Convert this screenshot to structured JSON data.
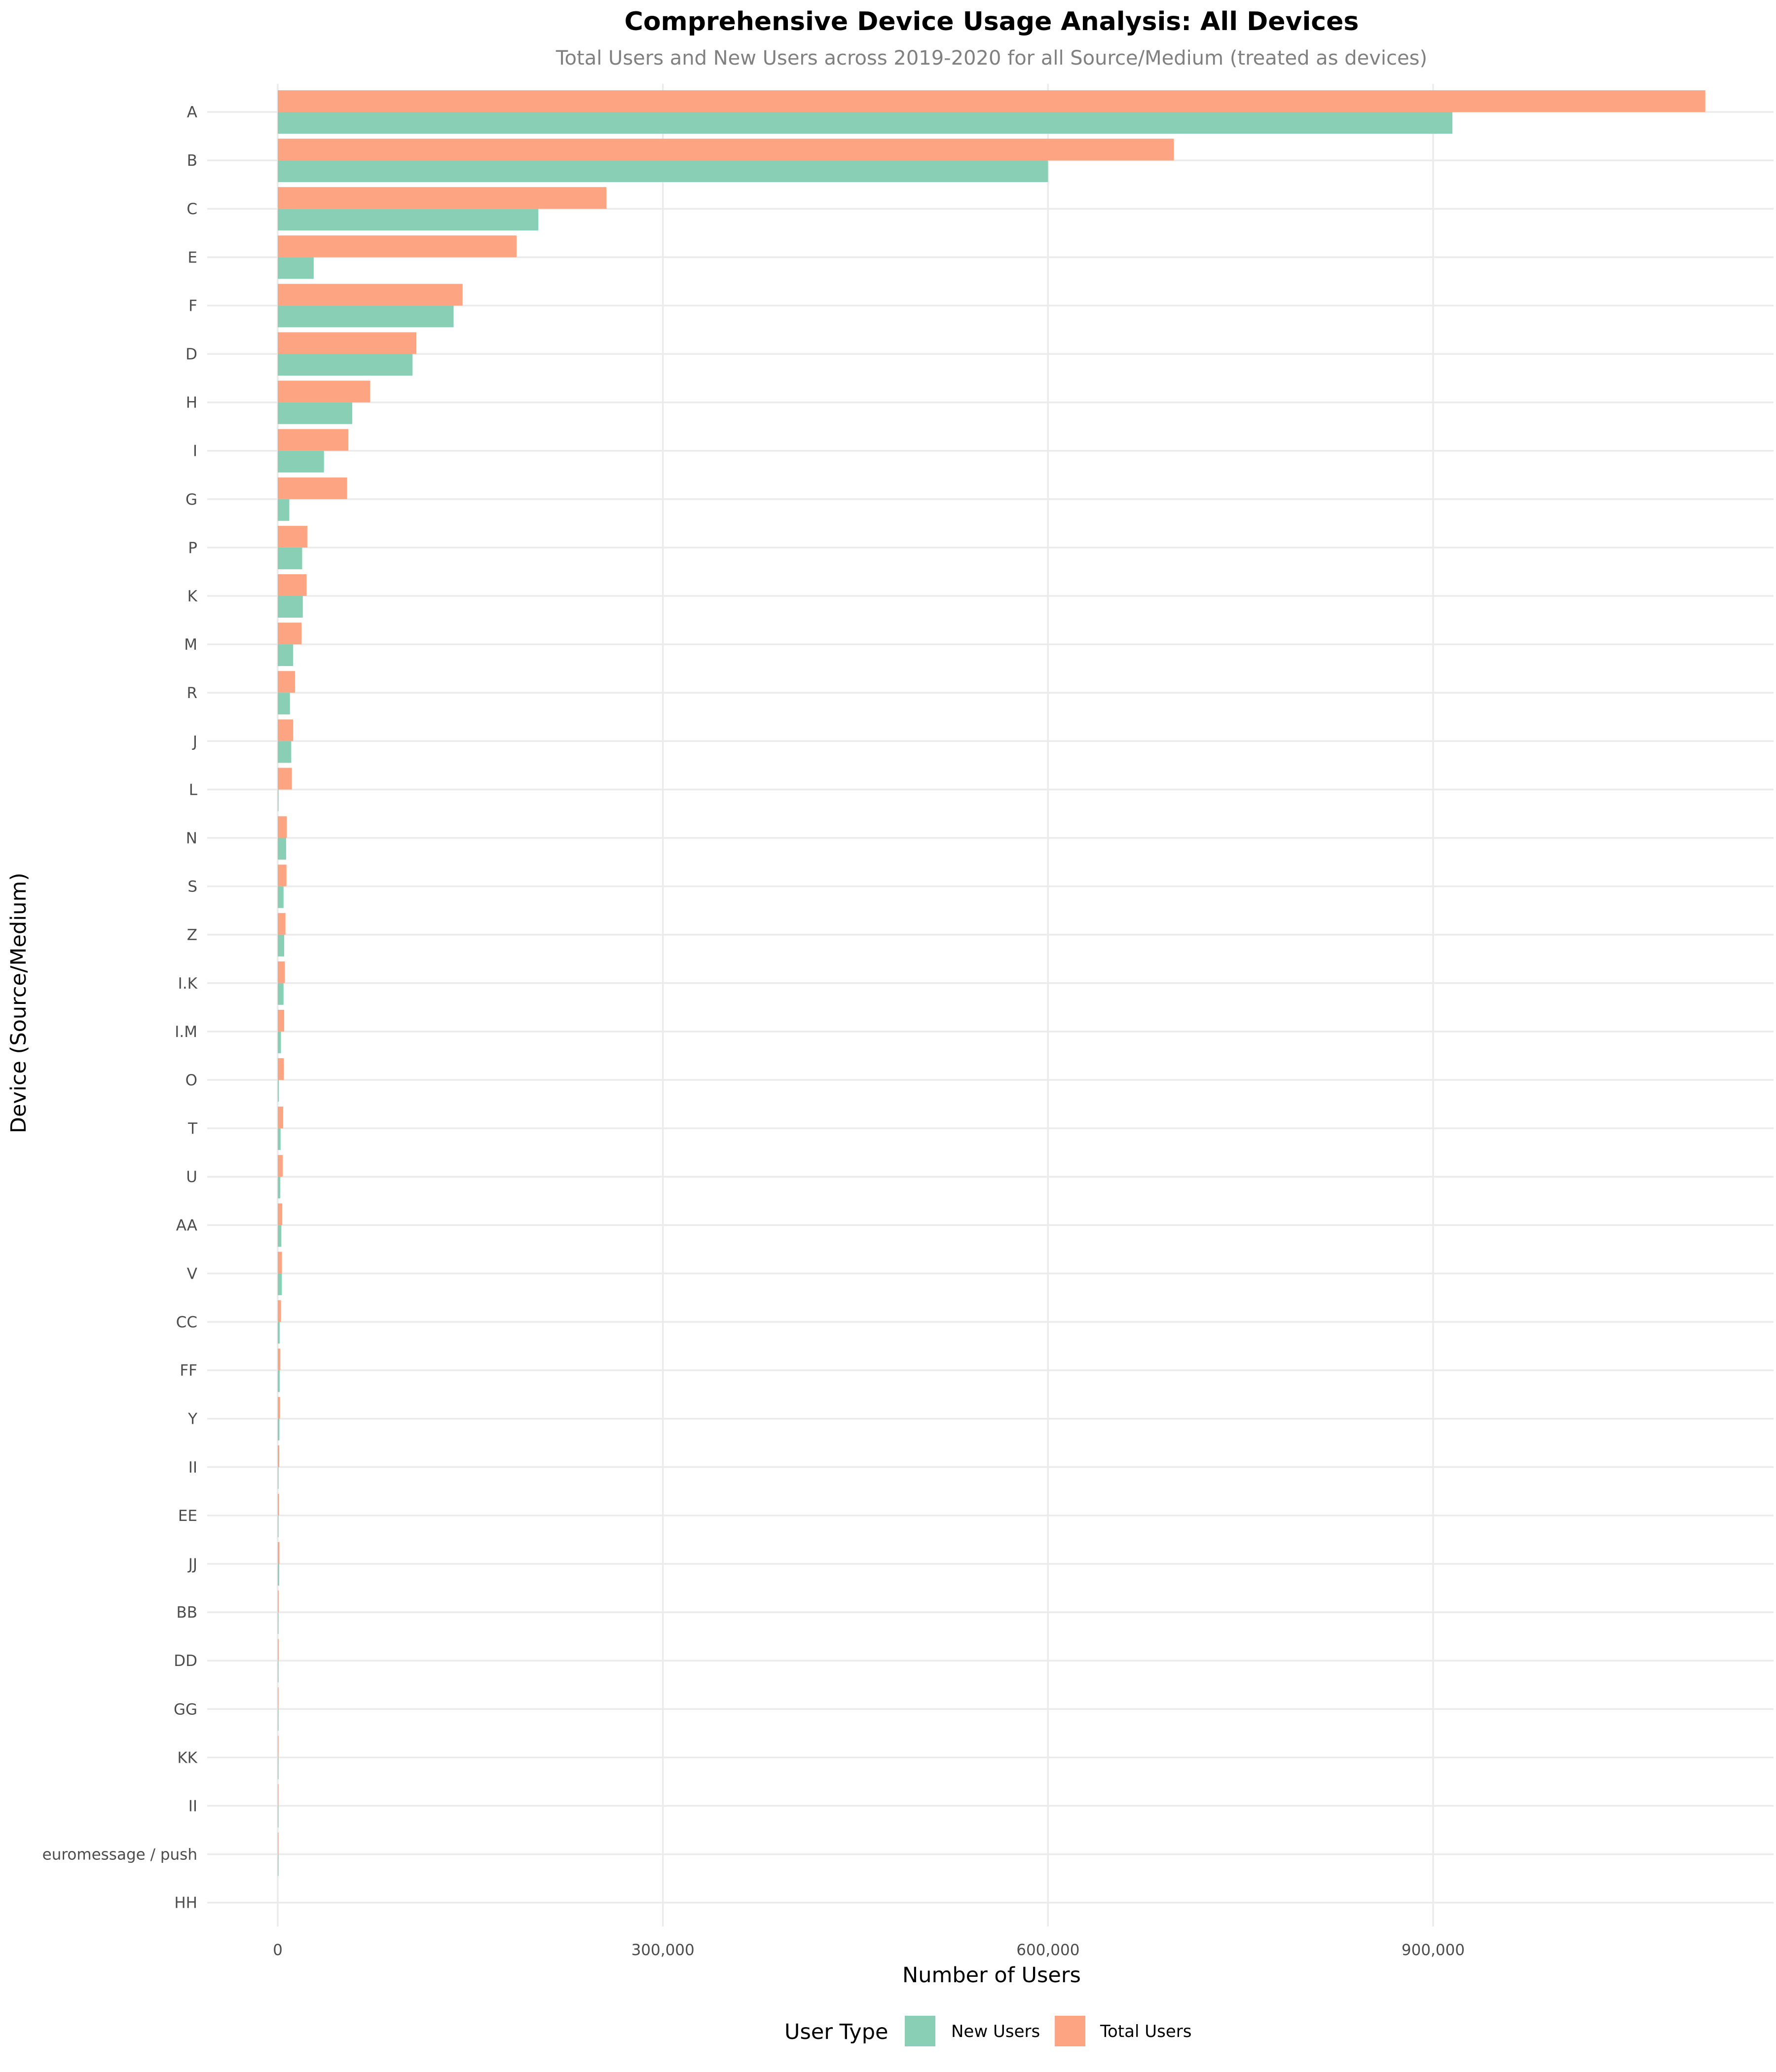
{
  "chart_data": {
    "type": "bar",
    "orientation": "horizontal",
    "title": "Comprehensive Device Usage Analysis: All Devices",
    "subtitle": "Total Users and New Users across 2019-2020 for all Source/Medium (treated as devices)",
    "xlabel": "Number of Users",
    "ylabel": "Device (Source/Medium)",
    "xlim": [
      -90000,
      1165000
    ],
    "x_ticks": [
      0,
      300000,
      600000,
      900000
    ],
    "x_tick_labels": [
      "0",
      "300,000",
      "600,000",
      "900,000"
    ],
    "grid": true,
    "legend": {
      "title": "User Type",
      "placement": "bottom"
    },
    "categories": [
      "A",
      "B",
      "C",
      "E",
      "F",
      "D",
      "H",
      "I",
      "G",
      "P",
      "K",
      "M",
      "R",
      "J",
      "L",
      "N",
      "S",
      "Z",
      "I.K",
      "I.M",
      "O",
      "T",
      "U",
      "AA",
      "V",
      "CC",
      "FF",
      "Y",
      "II",
      "EE",
      "JJ",
      "BB",
      "DD",
      "GG",
      "KK",
      "II",
      "euromessage / push",
      "HH"
    ],
    "series": [
      {
        "name": "New Users",
        "color": "#88cfb6",
        "values": [
          915000,
          600000,
          203000,
          28000,
          137000,
          105000,
          58000,
          36000,
          9000,
          19000,
          19500,
          12000,
          9500,
          10500,
          500,
          6500,
          4500,
          5000,
          4500,
          2500,
          800,
          2200,
          2000,
          2800,
          3200,
          1500,
          1500,
          1300,
          300,
          500,
          1100,
          400,
          300,
          300,
          300,
          200,
          100,
          0
        ]
      },
      {
        "name": "Total Users",
        "color": "#fda583",
        "values": [
          1112000,
          698000,
          256000,
          186000,
          144000,
          108000,
          72000,
          55000,
          54000,
          23000,
          22500,
          18500,
          13500,
          12000,
          11000,
          7000,
          6800,
          6000,
          5500,
          5000,
          4700,
          4200,
          3800,
          3500,
          3200,
          2500,
          2000,
          1800,
          1200,
          1000,
          1300,
          700,
          700,
          600,
          600,
          400,
          300,
          0
        ]
      }
    ]
  }
}
